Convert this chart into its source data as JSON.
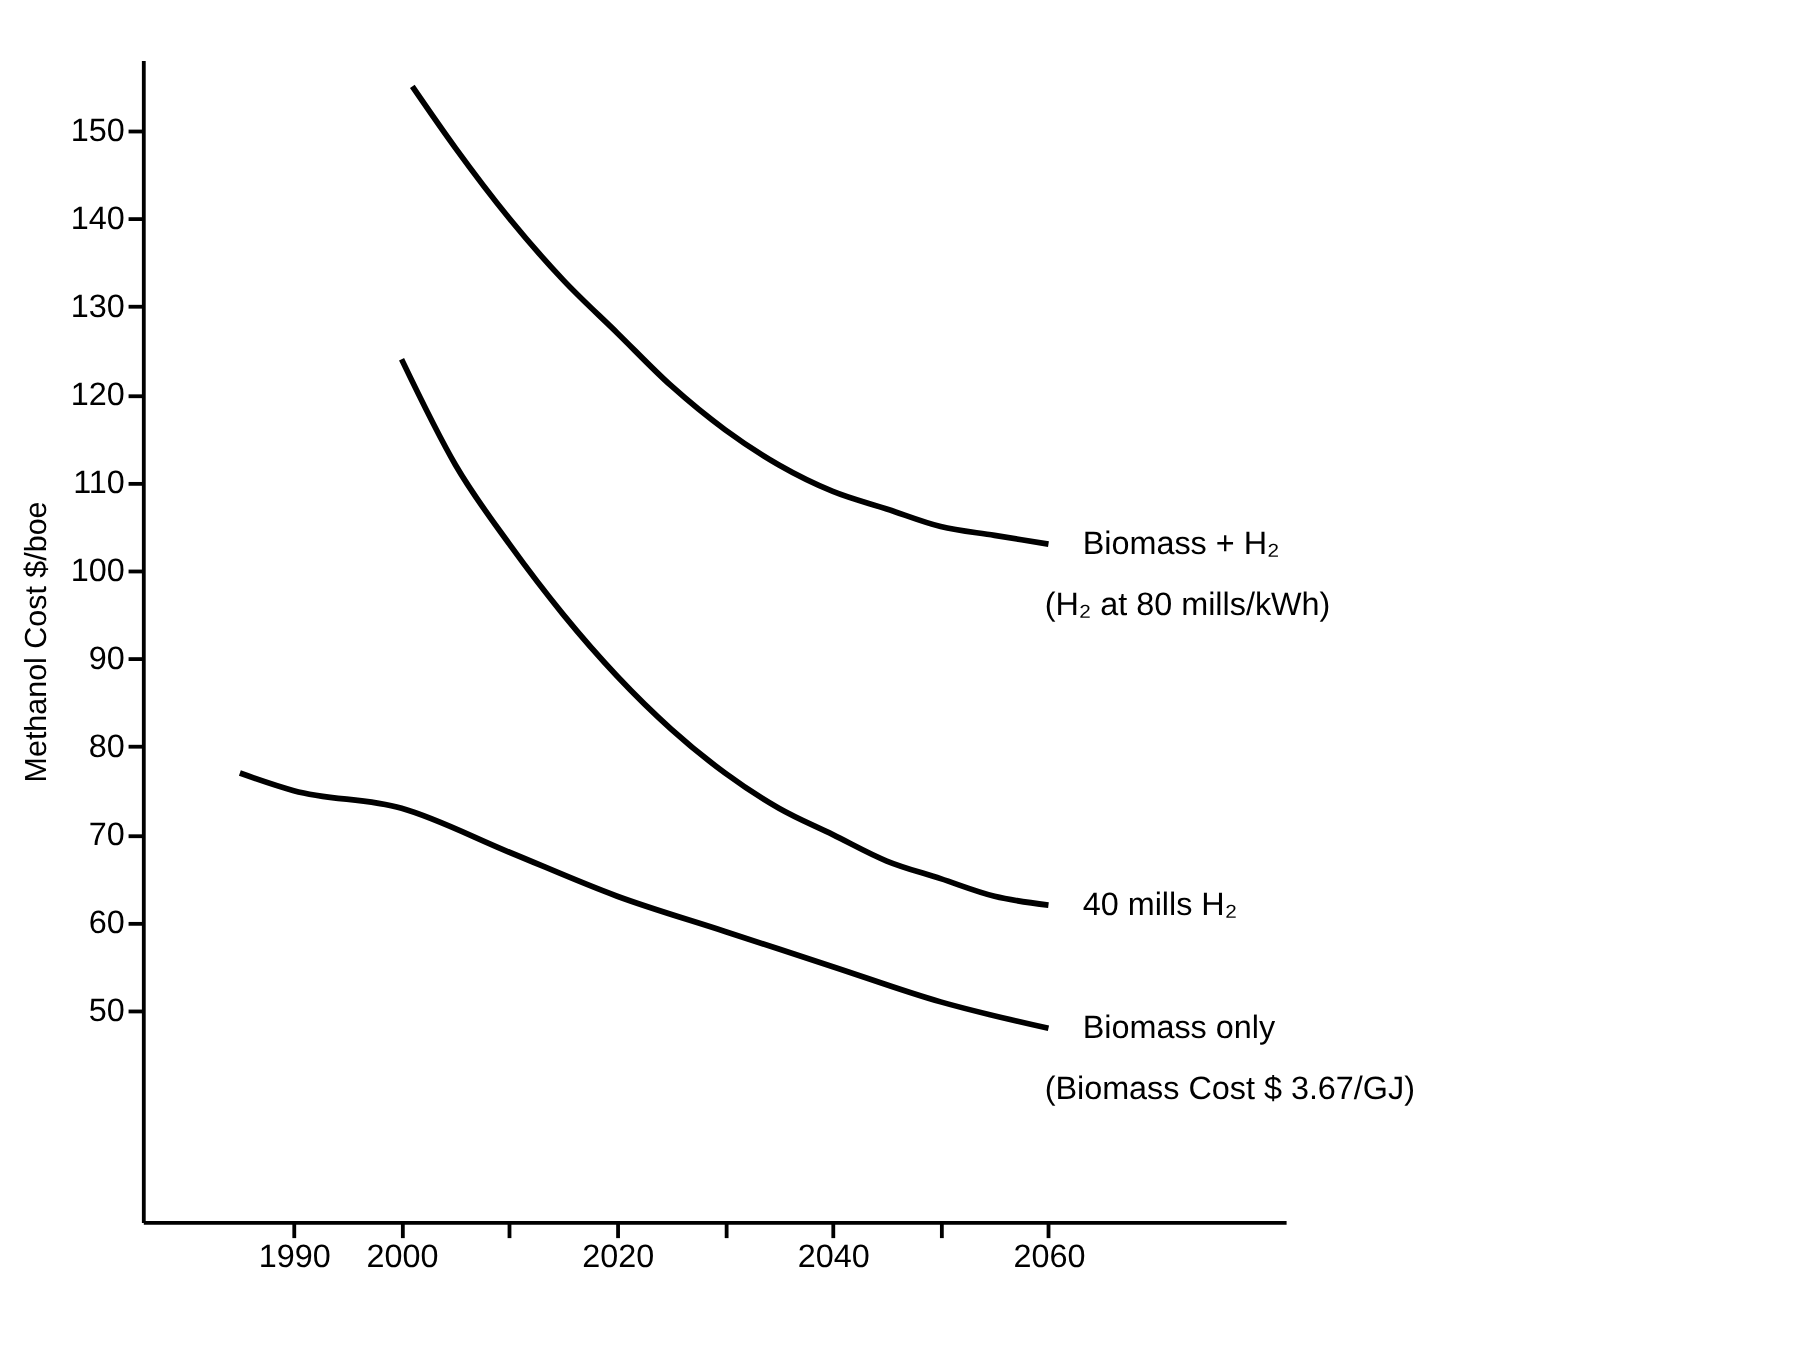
{
  "chart_data": {
    "type": "line",
    "ylabel": "Methanol Cost $/boe",
    "xlim": [
      1976,
      2082
    ],
    "xticks": [
      1990,
      2000,
      {
        "value": 2010,
        "label": null
      },
      2020,
      {
        "value": 2030,
        "label": null
      },
      2040,
      {
        "value": 2050,
        "label": null
      },
      2060
    ],
    "ylim": [
      26,
      158
    ],
    "yticks": [
      50,
      60,
      70,
      80,
      90,
      100,
      110,
      120,
      130,
      140,
      150
    ],
    "grid": false,
    "marker": "none",
    "line_style": "solid",
    "series": [
      {
        "name": "Biomass + H₂",
        "color": "#000000",
        "x": [
          2001,
          2005,
          2010,
          2015,
          2020,
          2025,
          2030,
          2035,
          2040,
          2045,
          2050,
          2055,
          2060
        ],
        "values": [
          155,
          148,
          140,
          133,
          127,
          121,
          116,
          112,
          109,
          107,
          105,
          104,
          103
        ]
      },
      {
        "name": "40 mills H₂",
        "color": "#000000",
        "x": [
          2000,
          2005,
          2010,
          2015,
          2020,
          2025,
          2030,
          2035,
          2040,
          2045,
          2050,
          2055,
          2060
        ],
        "values": [
          124,
          112,
          103,
          95,
          88,
          82,
          77,
          73,
          70,
          67,
          65,
          63,
          62
        ]
      },
      {
        "name": "Biomass only",
        "color": "#000000",
        "x": [
          1985,
          1990,
          2000,
          2010,
          2020,
          2030,
          2040,
          2050,
          2060
        ],
        "values": [
          77,
          75,
          73,
          68,
          63,
          59,
          55,
          51,
          48
        ]
      }
    ],
    "annotations": [
      "(H₂ at 80 mills/kWh)",
      "(Biomass Cost $ 3.67/GJ)"
    ]
  }
}
